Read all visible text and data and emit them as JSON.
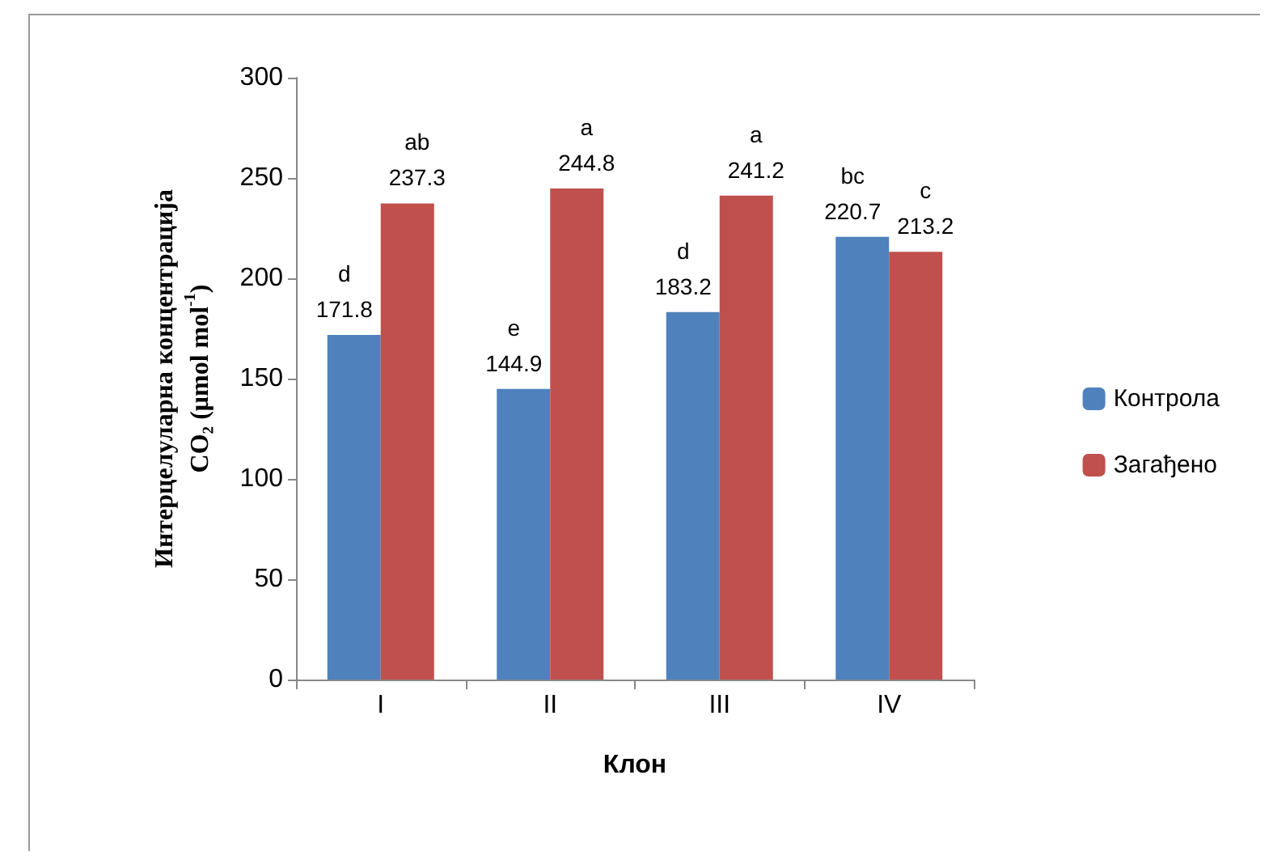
{
  "chart_data": {
    "type": "bar",
    "xlabel": "Клон",
    "ylabel": "Интерцелуларна концентрација\nCO₂ (μmol mol$^{-1}$)",
    "categories": [
      "I",
      "II",
      "III",
      "IV"
    ],
    "series": [
      {
        "name": "Контрола",
        "color": "#4f81bd",
        "values": [
          171.8,
          144.9,
          183.2,
          220.7
        ],
        "value_labels": [
          "d\n171.8",
          "e\n144.9",
          "d\n183.2",
          "bc\n220.7"
        ]
      },
      {
        "name": "Загађено",
        "color": "#c0504d",
        "values": [
          237.3,
          244.8,
          241.2,
          213.2
        ],
        "value_labels": [
          "ab\n237.3",
          "a\n244.8",
          "a\n241.2",
          "c\n213.2"
        ]
      }
    ],
    "ylim": [
      0,
      300
    ],
    "yticks": [
      0,
      50,
      100,
      150,
      200,
      250,
      300
    ],
    "grid": false,
    "legend": "right"
  }
}
